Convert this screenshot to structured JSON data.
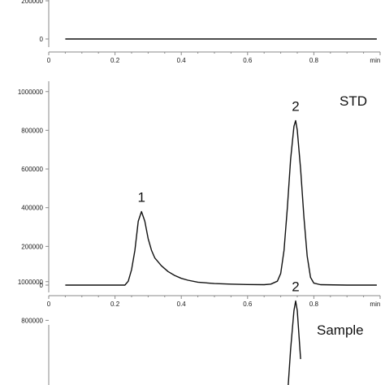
{
  "chart_data": [
    {
      "type": "line",
      "title": "",
      "xlabel": "min",
      "ylabel": "",
      "xlim": [
        0,
        1.0
      ],
      "x_ticks": [
        "0",
        "0.2",
        "0.4",
        "0.6",
        "0.8"
      ],
      "y_ticks_visible": [
        "0",
        "200000"
      ],
      "series": [
        {
          "x": [
            0.05,
            0.99
          ],
          "y": [
            0,
            0
          ]
        }
      ]
    },
    {
      "type": "line",
      "title": "STD",
      "xlabel": "min",
      "ylabel": "",
      "xlim": [
        0,
        1.0
      ],
      "ylim": [
        0,
        1000000
      ],
      "x_ticks": [
        "0",
        "0.2",
        "0.4",
        "0.6",
        "0.8"
      ],
      "y_ticks": [
        "0",
        "200000",
        "400000",
        "600000",
        "800000",
        "1000000"
      ],
      "annotations": [
        {
          "text": "1",
          "x": 0.28,
          "y": 380000
        },
        {
          "text": "2",
          "x": 0.745,
          "y": 850000
        }
      ],
      "series": [
        {
          "x": [
            0.05,
            0.23,
            0.24,
            0.25,
            0.26,
            0.27,
            0.28,
            0.29,
            0.3,
            0.31,
            0.32,
            0.34,
            0.36,
            0.38,
            0.4,
            0.42,
            0.45,
            0.5,
            0.55,
            0.6,
            0.65,
            0.67,
            0.69,
            0.7,
            0.71,
            0.72,
            0.73,
            0.74,
            0.745,
            0.75,
            0.76,
            0.77,
            0.78,
            0.79,
            0.8,
            0.82,
            0.9,
            0.99
          ],
          "y": [
            0,
            0,
            20000,
            80000,
            180000,
            330000,
            380000,
            330000,
            240000,
            180000,
            140000,
            100000,
            70000,
            50000,
            35000,
            25000,
            15000,
            8000,
            5000,
            3000,
            2000,
            5000,
            20000,
            60000,
            180000,
            400000,
            650000,
            820000,
            850000,
            800000,
            600000,
            350000,
            150000,
            40000,
            10000,
            2000,
            0,
            0
          ]
        }
      ]
    },
    {
      "type": "line",
      "title": "Sample",
      "xlabel": "min",
      "ylabel": "",
      "xlim": [
        0,
        1.0
      ],
      "ylim": [
        0,
        1000000
      ],
      "y_ticks_visible": [
        "800000",
        "1000000"
      ],
      "annotations": [
        {
          "text": "2",
          "x": 0.745,
          "y": 900000
        }
      ],
      "series": [
        {
          "x": [
            0.72,
            0.73,
            0.74,
            0.745,
            0.75,
            0.76
          ],
          "y": [
            400000,
            650000,
            850000,
            900000,
            850000,
            600000
          ]
        }
      ]
    }
  ]
}
